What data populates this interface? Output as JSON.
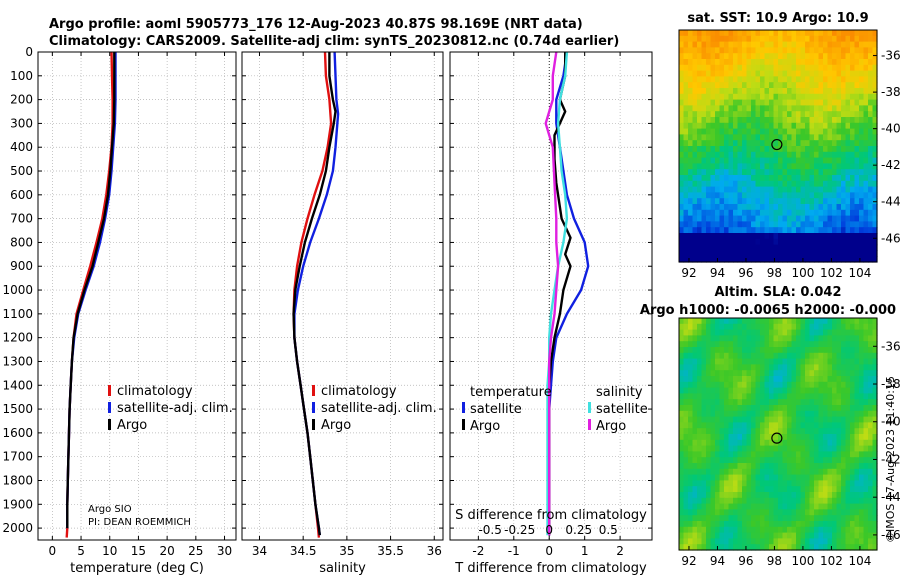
{
  "colors": {
    "climatology": "#e01010",
    "satellite_adj": "#1020e0",
    "argo": "#000000",
    "sat_temp": "#1020e0",
    "sat_sal": "#40e0e0",
    "argo_sal": "#e020e0",
    "grid": "#b0b0b0"
  },
  "header": {
    "line1": "Argo profile: aoml 5905773_176 12-Aug-2023 40.87S 98.169E (NRT data)",
    "line2": "Climatology: CARS2009. Satellite-adj clim: synTS_20230812.nc (0.74d earlier)"
  },
  "credits": {
    "line1": "Argo SIO",
    "line2": "PI: DEAN ROEMMICH",
    "imos": "©IMOS 17-Aug-2023 11:40:15"
  },
  "chart_data": [
    {
      "type": "line",
      "id": "temperature",
      "xlabel": "temperature (deg C)",
      "ylabel": "depth",
      "xlim": [
        -2.5,
        32
      ],
      "ylim": [
        2050,
        0
      ],
      "xticks": [
        0,
        5,
        10,
        15,
        20,
        25,
        30
      ],
      "yticks": [
        0,
        100,
        200,
        300,
        400,
        500,
        600,
        700,
        800,
        900,
        1000,
        1100,
        1200,
        1300,
        1400,
        1500,
        1600,
        1700,
        1800,
        1900,
        2000
      ],
      "legend": [
        "climatology",
        "satellite-adj. clim.",
        "Argo"
      ],
      "series": [
        {
          "name": "climatology",
          "color_key": "climatology",
          "points": [
            [
              10.3,
              0
            ],
            [
              10.4,
              100
            ],
            [
              10.5,
              200
            ],
            [
              10.5,
              300
            ],
            [
              10.3,
              400
            ],
            [
              9.9,
              500
            ],
            [
              9.4,
              600
            ],
            [
              8.7,
              700
            ],
            [
              7.7,
              800
            ],
            [
              6.6,
              900
            ],
            [
              5.4,
              1000
            ],
            [
              4.2,
              1100
            ],
            [
              3.7,
              1200
            ],
            [
              3.4,
              1300
            ],
            [
              3.2,
              1400
            ],
            [
              3.0,
              1500
            ],
            [
              2.9,
              1600
            ],
            [
              2.8,
              1700
            ],
            [
              2.7,
              1800
            ],
            [
              2.6,
              1900
            ],
            [
              2.6,
              2000
            ],
            [
              2.5,
              2040
            ]
          ]
        },
        {
          "name": "satellite-adj. clim.",
          "color_key": "satellite_adj",
          "points": [
            [
              11.0,
              0
            ],
            [
              11.0,
              100
            ],
            [
              11.0,
              200
            ],
            [
              10.9,
              300
            ],
            [
              10.6,
              400
            ],
            [
              10.3,
              500
            ],
            [
              9.9,
              600
            ],
            [
              9.2,
              700
            ],
            [
              8.3,
              800
            ],
            [
              7.2,
              900
            ],
            [
              5.8,
              1000
            ],
            [
              4.5,
              1100
            ],
            [
              3.8,
              1200
            ],
            [
              3.4,
              1300
            ],
            [
              3.2,
              1400
            ],
            [
              3.0,
              1500
            ],
            [
              2.9,
              1600
            ],
            [
              2.8,
              1700
            ],
            [
              2.7,
              1800
            ],
            [
              2.6,
              1900
            ],
            [
              2.6,
              2000
            ]
          ]
        },
        {
          "name": "Argo",
          "color_key": "argo",
          "points": [
            [
              10.8,
              0
            ],
            [
              10.8,
              100
            ],
            [
              10.8,
              200
            ],
            [
              10.7,
              300
            ],
            [
              10.4,
              400
            ],
            [
              10.1,
              500
            ],
            [
              9.7,
              600
            ],
            [
              9.0,
              700
            ],
            [
              8.0,
              800
            ],
            [
              7.0,
              900
            ],
            [
              5.6,
              1000
            ],
            [
              4.4,
              1100
            ],
            [
              3.7,
              1200
            ],
            [
              3.4,
              1300
            ],
            [
              3.2,
              1400
            ],
            [
              3.0,
              1500
            ],
            [
              2.9,
              1600
            ],
            [
              2.8,
              1700
            ],
            [
              2.7,
              1800
            ],
            [
              2.6,
              1900
            ],
            [
              2.6,
              2000
            ]
          ]
        }
      ]
    },
    {
      "type": "line",
      "id": "salinity",
      "xlabel": "salinity",
      "ylabel": "depth",
      "xlim": [
        33.8,
        36.1
      ],
      "ylim": [
        2050,
        0
      ],
      "xticks": [
        34,
        34.5,
        35,
        35.5,
        36
      ],
      "legend": [
        "climatology",
        "satellite-adj. clim.",
        "Argo"
      ],
      "series": [
        {
          "name": "climatology",
          "color_key": "climatology",
          "points": [
            [
              34.75,
              0
            ],
            [
              34.76,
              100
            ],
            [
              34.8,
              200
            ],
            [
              34.82,
              300
            ],
            [
              34.78,
              400
            ],
            [
              34.72,
              500
            ],
            [
              34.63,
              600
            ],
            [
              34.55,
              700
            ],
            [
              34.48,
              800
            ],
            [
              34.43,
              900
            ],
            [
              34.4,
              1000
            ],
            [
              34.39,
              1100
            ],
            [
              34.4,
              1200
            ],
            [
              34.43,
              1300
            ],
            [
              34.47,
              1400
            ],
            [
              34.51,
              1500
            ],
            [
              34.55,
              1600
            ],
            [
              34.58,
              1700
            ],
            [
              34.61,
              1800
            ],
            [
              34.64,
              1900
            ],
            [
              34.67,
              2000
            ],
            [
              34.68,
              2040
            ]
          ]
        },
        {
          "name": "satellite-adj. clim.",
          "color_key": "satellite_adj",
          "points": [
            [
              34.86,
              0
            ],
            [
              34.87,
              100
            ],
            [
              34.88,
              200
            ],
            [
              34.9,
              260
            ],
            [
              34.87,
              400
            ],
            [
              34.84,
              500
            ],
            [
              34.77,
              600
            ],
            [
              34.68,
              700
            ],
            [
              34.58,
              800
            ],
            [
              34.5,
              900
            ],
            [
              34.44,
              1000
            ],
            [
              34.4,
              1100
            ],
            [
              34.4,
              1200
            ],
            [
              34.43,
              1300
            ],
            [
              34.47,
              1400
            ],
            [
              34.51,
              1500
            ],
            [
              34.55,
              1600
            ],
            [
              34.58,
              1700
            ],
            [
              34.61,
              1800
            ],
            [
              34.64,
              1900
            ],
            [
              34.68,
              2000
            ],
            [
              34.69,
              2030
            ]
          ]
        },
        {
          "name": "Argo",
          "color_key": "argo",
          "points": [
            [
              34.8,
              0
            ],
            [
              34.8,
              100
            ],
            [
              34.82,
              150
            ],
            [
              34.84,
              200
            ],
            [
              34.87,
              250
            ],
            [
              34.85,
              300
            ],
            [
              34.8,
              400
            ],
            [
              34.76,
              500
            ],
            [
              34.69,
              600
            ],
            [
              34.6,
              700
            ],
            [
              34.52,
              800
            ],
            [
              34.46,
              900
            ],
            [
              34.41,
              1000
            ],
            [
              34.39,
              1100
            ],
            [
              34.4,
              1200
            ],
            [
              34.43,
              1300
            ],
            [
              34.47,
              1400
            ],
            [
              34.51,
              1500
            ],
            [
              34.55,
              1600
            ],
            [
              34.58,
              1700
            ],
            [
              34.61,
              1800
            ],
            [
              34.64,
              1900
            ],
            [
              34.68,
              2000
            ],
            [
              34.69,
              2030
            ]
          ]
        }
      ]
    },
    {
      "type": "line",
      "id": "difference",
      "xlabel": "T difference from climatology",
      "top_label": "S difference from climatology",
      "xlim": [
        -2.8,
        2.9
      ],
      "ylim": [
        2050,
        0
      ],
      "xticks": [
        -2,
        -1,
        0,
        1,
        2
      ],
      "top_ticks": [
        "-0.5",
        "-0.25",
        "0",
        "0.25",
        "0.5"
      ],
      "top_tick_values": [
        -0.5,
        -0.25,
        0,
        0.25,
        0.5
      ],
      "legend_temperature": {
        "title": "temperature",
        "items": [
          "satellite",
          "Argo"
        ]
      },
      "legend_salinity": {
        "title": "salinity",
        "items": [
          "satellite",
          "Argo"
        ]
      },
      "series": [
        {
          "name": "temperature satellite",
          "color_key": "satellite_adj",
          "points": [
            [
              0.5,
              0
            ],
            [
              0.4,
              100
            ],
            [
              0.2,
              200
            ],
            [
              0.2,
              300
            ],
            [
              0.3,
              400
            ],
            [
              0.4,
              500
            ],
            [
              0.5,
              600
            ],
            [
              0.7,
              700
            ],
            [
              1.0,
              800
            ],
            [
              1.1,
              900
            ],
            [
              0.9,
              1000
            ],
            [
              0.5,
              1100
            ],
            [
              0.2,
              1200
            ],
            [
              0.1,
              1300
            ],
            [
              0.05,
              1400
            ],
            [
              0.0,
              1500
            ],
            [
              0.0,
              1600
            ],
            [
              0.0,
              1700
            ],
            [
              0.0,
              1800
            ],
            [
              0.0,
              1900
            ],
            [
              0.0,
              2000
            ],
            [
              0.0,
              2030
            ]
          ]
        },
        {
          "name": "temperature Argo",
          "color_key": "argo",
          "points": [
            [
              0.45,
              0
            ],
            [
              0.45,
              100
            ],
            [
              0.3,
              200
            ],
            [
              0.45,
              250
            ],
            [
              0.15,
              350
            ],
            [
              0.15,
              450
            ],
            [
              0.2,
              550
            ],
            [
              0.35,
              700
            ],
            [
              0.6,
              780
            ],
            [
              0.45,
              850
            ],
            [
              0.6,
              900
            ],
            [
              0.4,
              1000
            ],
            [
              0.3,
              1100
            ],
            [
              0.15,
              1200
            ],
            [
              0.05,
              1300
            ],
            [
              0.0,
              1400
            ],
            [
              0.0,
              1500
            ],
            [
              0.0,
              1600
            ],
            [
              0.0,
              1700
            ],
            [
              0.0,
              1800
            ],
            [
              0.0,
              1900
            ],
            [
              0.0,
              2000
            ],
            [
              0.0,
              2030
            ]
          ]
        },
        {
          "name": "salinity satellite",
          "color_key": "sat_sal",
          "points": [
            [
              0.5,
              0
            ],
            [
              0.45,
              100
            ],
            [
              0.3,
              200
            ],
            [
              0.25,
              300
            ],
            [
              0.3,
              400
            ],
            [
              0.35,
              500
            ],
            [
              0.45,
              600
            ],
            [
              0.5,
              700
            ],
            [
              0.4,
              800
            ],
            [
              0.25,
              900
            ],
            [
              0.15,
              1000
            ],
            [
              0.05,
              1100
            ],
            [
              0.0,
              1200
            ],
            [
              0.0,
              1300
            ],
            [
              -0.05,
              1400
            ],
            [
              -0.05,
              1500
            ],
            [
              -0.05,
              1600
            ],
            [
              -0.05,
              1700
            ],
            [
              -0.05,
              1800
            ],
            [
              -0.05,
              1900
            ],
            [
              -0.05,
              2000
            ],
            [
              -0.05,
              2030
            ]
          ]
        },
        {
          "name": "salinity Argo",
          "color_key": "argo_sal",
          "points": [
            [
              0.2,
              0
            ],
            [
              0.1,
              100
            ],
            [
              0.1,
              200
            ],
            [
              -0.1,
              300
            ],
            [
              0.1,
              400
            ],
            [
              0.15,
              550
            ],
            [
              0.2,
              700
            ],
            [
              0.2,
              800
            ],
            [
              0.25,
              900
            ],
            [
              0.2,
              1000
            ],
            [
              0.15,
              1100
            ],
            [
              0.05,
              1200
            ],
            [
              0.0,
              1300
            ],
            [
              0.0,
              1400
            ],
            [
              0.0,
              1500
            ],
            [
              0.0,
              1600
            ],
            [
              0.0,
              1700
            ],
            [
              0.0,
              1800
            ],
            [
              0.0,
              1900
            ],
            [
              0.0,
              2000
            ],
            [
              0.0,
              2030
            ]
          ]
        }
      ]
    },
    {
      "type": "heatmap",
      "id": "sst_map",
      "title": "sat. SST: 10.9 Argo: 10.9",
      "xticks": [
        92,
        94,
        96,
        98,
        100,
        102,
        104
      ],
      "yticks": [
        -36,
        -38,
        -40,
        -42,
        -44,
        -46
      ],
      "xlim": [
        91.3,
        105.2
      ],
      "ylim": [
        -47.3,
        -34.6
      ],
      "marker": [
        98.17,
        -40.87
      ]
    },
    {
      "type": "heatmap",
      "id": "sla_map",
      "title": "Altim. SLA: 0.042",
      "subtitle": "Argo h1000: -0.0065 h2000: -0.000",
      "xticks": [
        92,
        94,
        96,
        98,
        100,
        102,
        104
      ],
      "yticks": [
        -36,
        -38,
        -40,
        -42,
        -44,
        -46
      ],
      "xlim": [
        91.3,
        105.2
      ],
      "ylim": [
        -46.8,
        -34.5
      ],
      "marker": [
        98.17,
        -40.87
      ]
    }
  ]
}
